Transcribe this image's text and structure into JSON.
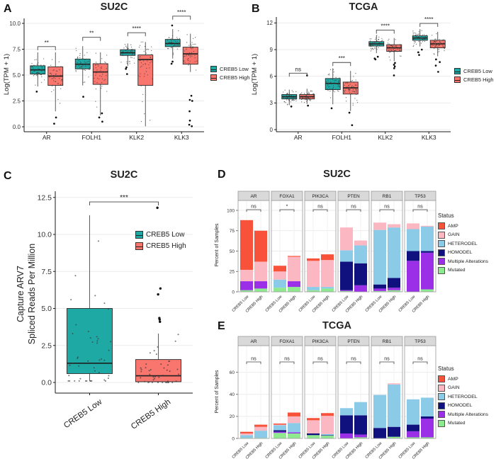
{
  "figure": {
    "panels": {
      "A": {
        "letter": "A",
        "title": "SU2C"
      },
      "B": {
        "letter": "B",
        "title": "TCGA"
      },
      "C": {
        "letter": "C",
        "title": "SU2C"
      },
      "D": {
        "letter": "D",
        "title": "SU2C"
      },
      "E": {
        "letter": "E",
        "title": "TCGA"
      }
    },
    "legend_groups": [
      "CREB5 Low",
      "CREB5 High"
    ],
    "status_legend_title": "Status",
    "status_legend_order": [
      "AMP",
      "GAIN",
      "HETERODEL",
      "HOMODEL",
      "Multiple Alterations",
      "Mutated"
    ],
    "colors": {
      "creb5_low": "#1FA9A4",
      "creb5_high": "#F8766D",
      "box_border": "#2B2B2B",
      "median": "#1F1F1F",
      "grid": "#EBEBEB",
      "axis": "#1A1A1A",
      "strip_bg": "#D9D9D9",
      "strip_border": "#999999",
      "panel_border": "#999999",
      "point": "#3B3B3B",
      "sig": "#444444",
      "status": {
        "AMP": "#F8533A",
        "GAIN": "#FBB8C3",
        "HETERODEL": "#8BCBE8",
        "HOMODEL": "#10107E",
        "Multiple Alterations": "#9B2FE8",
        "Mutated": "#8FE98F"
      }
    }
  },
  "chart_data": [
    {
      "id": "A",
      "type": "boxplot",
      "title": "SU2C",
      "ylabel": "Log(TPM + 1)",
      "ytick_labels": [
        "0.0",
        "2.5",
        "5.0",
        "7.5",
        "10.0"
      ],
      "ytick_values": [
        0,
        2.5,
        5,
        7.5,
        10
      ],
      "categories": [
        "AR",
        "FOLH1",
        "KLK2",
        "KLK3"
      ],
      "groups": [
        "CREB5 Low",
        "CREB5 High"
      ],
      "significance": [
        "**",
        "**",
        "****",
        "****"
      ],
      "sig_y": [
        7.75,
        8.65,
        9.1,
        10.7
      ],
      "boxes": [
        {
          "category": "AR",
          "group": "CREB5 Low",
          "lo": 3.9,
          "q1": 5.1,
          "med": 5.5,
          "q3": 5.9,
          "hi": 7.2,
          "outliers": [
            3.4
          ]
        },
        {
          "category": "AR",
          "group": "CREB5 High",
          "lo": 1.5,
          "q1": 4.0,
          "med": 4.9,
          "q3": 5.8,
          "hi": 7.2,
          "outliers": [
            0.9,
            0.3
          ]
        },
        {
          "category": "FOLH1",
          "group": "CREB5 Low",
          "lo": 4.0,
          "q1": 5.6,
          "med": 6.05,
          "q3": 6.55,
          "hi": 7.8,
          "outliers": [
            2.9
          ]
        },
        {
          "category": "FOLH1",
          "group": "CREB5 High",
          "lo": 1.1,
          "q1": 4.1,
          "med": 5.3,
          "q3": 6.1,
          "hi": 7.2,
          "outliers": [
            0.5,
            0.9,
            1.3
          ]
        },
        {
          "category": "KLK2",
          "group": "CREB5 Low",
          "lo": 5.9,
          "q1": 6.9,
          "med": 7.15,
          "q3": 7.45,
          "hi": 8.05,
          "outliers": [
            5.1,
            5.6,
            5.75
          ]
        },
        {
          "category": "KLK2",
          "group": "CREB5 High",
          "lo": 0.05,
          "q1": 4.0,
          "med": 6.5,
          "q3": 6.95,
          "hi": 8.2,
          "outliers": []
        },
        {
          "category": "KLK3",
          "group": "CREB5 Low",
          "lo": 6.6,
          "q1": 7.75,
          "med": 8.05,
          "q3": 8.45,
          "hi": 9.45,
          "outliers": [
            9.8,
            6.1,
            6.3
          ]
        },
        {
          "category": "KLK3",
          "group": "CREB5 High",
          "lo": 5.3,
          "q1": 6.05,
          "med": 7.05,
          "q3": 7.7,
          "hi": 9.0,
          "outliers": [
            3.0,
            2.6,
            2.5,
            1.5,
            0.6,
            0.2,
            0.05
          ]
        }
      ]
    },
    {
      "id": "B",
      "type": "boxplot",
      "title": "TCGA",
      "ylabel": "Log(TPM + 1)",
      "ytick_labels": [
        "0",
        "3",
        "6",
        "9",
        "12"
      ],
      "ytick_values": [
        0,
        3,
        6,
        9,
        12
      ],
      "categories": [
        "AR",
        "FOLH1",
        "KLK2",
        "KLK3"
      ],
      "groups": [
        "CREB5 Low",
        "CREB5 High"
      ],
      "significance": [
        "ns",
        "***",
        "****",
        "****"
      ],
      "sig_y": [
        6.35,
        7.55,
        11.2,
        11.95
      ],
      "boxes": [
        {
          "category": "AR",
          "group": "CREB5 Low",
          "lo": 2.75,
          "q1": 3.45,
          "med": 3.7,
          "q3": 3.95,
          "hi": 4.5,
          "outliers": [
            2.6
          ]
        },
        {
          "category": "AR",
          "group": "CREB5 High",
          "lo": 2.9,
          "q1": 3.45,
          "med": 3.7,
          "q3": 3.95,
          "hi": 4.6,
          "outliers": [
            6.1,
            2.7
          ]
        },
        {
          "category": "FOLH1",
          "group": "CREB5 Low",
          "lo": 2.85,
          "q1": 4.5,
          "med": 5.2,
          "q3": 5.75,
          "hi": 6.9,
          "outliers": [
            2.4
          ]
        },
        {
          "category": "FOLH1",
          "group": "CREB5 High",
          "lo": 2.1,
          "q1": 4.0,
          "med": 4.7,
          "q3": 5.35,
          "hi": 6.6,
          "outliers": [
            1.9,
            0.5
          ]
        },
        {
          "category": "KLK2",
          "group": "CREB5 Low",
          "lo": 8.6,
          "q1": 9.4,
          "med": 9.65,
          "q3": 9.9,
          "hi": 10.6,
          "outliers": [
            8.0,
            8.2,
            7.9
          ]
        },
        {
          "category": "KLK2",
          "group": "CREB5 High",
          "lo": 7.7,
          "q1": 8.8,
          "med": 9.2,
          "q3": 9.55,
          "hi": 10.3,
          "outliers": [
            6.1,
            6.9,
            7.1,
            7.3,
            7.5
          ]
        },
        {
          "category": "KLK3",
          "group": "CREB5 Low",
          "lo": 9.35,
          "q1": 10.05,
          "med": 10.3,
          "q3": 10.55,
          "hi": 11.3,
          "outliers": [
            8.4,
            8.7,
            9.0
          ]
        },
        {
          "category": "KLK3",
          "group": "CREB5 High",
          "lo": 8.25,
          "q1": 9.2,
          "med": 9.65,
          "q3": 10.05,
          "hi": 11.0,
          "outliers": [
            6.5,
            7.2,
            7.6,
            7.9
          ]
        }
      ]
    },
    {
      "id": "C",
      "type": "boxplot",
      "title": "SU2C",
      "ylabel": "Capture ARV7\nSpliced Reads Per Million",
      "ytick_labels": [
        "0.0",
        "2.5",
        "5.0",
        "7.5",
        "10.0",
        "12.5"
      ],
      "ytick_values": [
        0,
        2.5,
        5,
        7.5,
        10,
        12.5
      ],
      "categories": [
        "CREB5 Low",
        "CREB5 High"
      ],
      "groups": [
        "CREB5 Low",
        "CREB5 High"
      ],
      "significance": [
        "***"
      ],
      "sig_y": [
        12.2
      ],
      "boxes": [
        {
          "category": "CREB5 Low",
          "group": "CREB5 Low",
          "lo": 0.1,
          "q1": 0.6,
          "med": 1.3,
          "q3": 5.0,
          "hi": 11.3,
          "outliers": []
        },
        {
          "category": "CREB5 High",
          "group": "CREB5 High",
          "lo": 0.0,
          "q1": 0.05,
          "med": 0.45,
          "q3": 1.55,
          "hi": 3.3,
          "outliers": [
            4.1,
            4.25,
            4.35,
            5.95,
            6.35,
            11.8
          ]
        }
      ]
    },
    {
      "id": "D",
      "type": "stacked_bar",
      "title": "SU2C",
      "ylabel": "Percent of Samples",
      "ytick_values": [
        0,
        25,
        50,
        75,
        100
      ],
      "facets": [
        "AR",
        "FOXA1",
        "PIK3CA",
        "PTEN",
        "RB1",
        "TP53"
      ],
      "groups": [
        "CREB5 Low",
        "CREB5 High"
      ],
      "significance": [
        "ns",
        "*",
        "ns",
        "ns",
        "ns",
        "ns"
      ],
      "stack_order": [
        "Mutated",
        "Multiple Alterations",
        "HOMODEL",
        "HETERODEL",
        "GAIN",
        "AMP"
      ],
      "values": {
        "AR": {
          "CREB5 Low": {
            "Mutated": 2,
            "Multiple Alterations": 11,
            "HOMODEL": 0,
            "HETERODEL": 0,
            "GAIN": 14,
            "AMP": 61
          },
          "CREB5 High": {
            "Mutated": 4,
            "Multiple Alterations": 9,
            "HOMODEL": 0,
            "HETERODEL": 0,
            "GAIN": 24,
            "AMP": 38
          }
        },
        "FOXA1": {
          "CREB5 Low": {
            "Mutated": 5,
            "Multiple Alterations": 0,
            "HOMODEL": 0,
            "HETERODEL": 10,
            "GAIN": 10,
            "AMP": 7
          },
          "CREB5 High": {
            "Mutated": 6,
            "Multiple Alterations": 7,
            "HOMODEL": 0,
            "HETERODEL": 0,
            "GAIN": 30,
            "AMP": 1
          }
        },
        "PIK3CA": {
          "CREB5 Low": {
            "Mutated": 2,
            "Multiple Alterations": 0,
            "HOMODEL": 0,
            "HETERODEL": 4,
            "GAIN": 32,
            "AMP": 3
          },
          "CREB5 High": {
            "Mutated": 4,
            "Multiple Alterations": 0,
            "HOMODEL": 0,
            "HETERODEL": 2,
            "GAIN": 33,
            "AMP": 7
          }
        },
        "PTEN": {
          "CREB5 Low": {
            "Mutated": 1,
            "Multiple Alterations": 1,
            "HOMODEL": 35,
            "HETERODEL": 14,
            "GAIN": 28,
            "AMP": 0
          },
          "CREB5 High": {
            "Mutated": 0,
            "Multiple Alterations": 8,
            "HOMODEL": 27,
            "HETERODEL": 22,
            "GAIN": 6,
            "AMP": 0
          }
        },
        "RB1": {
          "CREB5 Low": {
            "Mutated": 1,
            "Multiple Alterations": 3,
            "HOMODEL": 5,
            "HETERODEL": 67,
            "GAIN": 9,
            "AMP": 0
          },
          "CREB5 High": {
            "Mutated": 2,
            "Multiple Alterations": 3,
            "HOMODEL": 12,
            "HETERODEL": 62,
            "GAIN": 4,
            "AMP": 0
          }
        },
        "TP53": {
          "CREB5 Low": {
            "Mutated": 0,
            "Multiple Alterations": 38,
            "HOMODEL": 12,
            "HETERODEL": 27,
            "GAIN": 7,
            "AMP": 0
          },
          "CREB5 High": {
            "Mutated": 3,
            "Multiple Alterations": 45,
            "HOMODEL": 2,
            "HETERODEL": 30,
            "GAIN": 1,
            "AMP": 0
          }
        }
      }
    },
    {
      "id": "E",
      "type": "stacked_bar",
      "title": "TCGA",
      "ylabel": "Percent of Samples",
      "ytick_values": [
        0,
        20,
        40,
        60
      ],
      "facets": [
        "AR",
        "FOXA1",
        "PIK3CA",
        "PTEN",
        "RB1",
        "TP53"
      ],
      "groups": [
        "CREB5 Low",
        "CREB5 High"
      ],
      "significance": [
        "ns",
        "ns",
        "ns",
        "ns",
        "ns",
        "ns"
      ],
      "stack_order": [
        "Mutated",
        "Multiple Alterations",
        "HOMODEL",
        "HETERODEL",
        "GAIN",
        "AMP"
      ],
      "values": {
        "AR": {
          "CREB5 Low": {
            "Mutated": 0.5,
            "Multiple Alterations": 0,
            "HOMODEL": 0,
            "HETERODEL": 2.5,
            "GAIN": 1.5,
            "AMP": 1.5
          },
          "CREB5 High": {
            "Mutated": 0.5,
            "Multiple Alterations": 0,
            "HOMODEL": 0,
            "HETERODEL": 6.5,
            "GAIN": 3.5,
            "AMP": 2
          }
        },
        "FOXA1": {
          "CREB5 Low": {
            "Mutated": 5,
            "Multiple Alterations": 1,
            "HOMODEL": 1.5,
            "HETERODEL": 4.5,
            "GAIN": 0.5,
            "AMP": 1
          },
          "CREB5 High": {
            "Mutated": 4.5,
            "Multiple Alterations": 1,
            "HOMODEL": 0,
            "HETERODEL": 8.5,
            "GAIN": 6,
            "AMP": 3.5
          }
        },
        "PIK3CA": {
          "CREB5 Low": {
            "Mutated": 3,
            "Multiple Alterations": 0,
            "HOMODEL": 1.5,
            "HETERODEL": 0,
            "GAIN": 12,
            "AMP": 2
          },
          "CREB5 High": {
            "Mutated": 2.5,
            "Multiple Alterations": 0,
            "HOMODEL": 0.5,
            "HETERODEL": 1,
            "GAIN": 16.5,
            "AMP": 2.5
          }
        },
        "PTEN": {
          "CREB5 Low": {
            "Mutated": 0,
            "Multiple Alterations": 4.5,
            "HOMODEL": 16.5,
            "HETERODEL": 6.5,
            "GAIN": 0,
            "AMP": 0
          },
          "CREB5 High": {
            "Mutated": 1,
            "Multiple Alterations": 2.5,
            "HOMODEL": 17.5,
            "HETERODEL": 12,
            "GAIN": 0,
            "AMP": 0
          }
        },
        "RB1": {
          "CREB5 Low": {
            "Mutated": 0,
            "Multiple Alterations": 0,
            "HOMODEL": 9.5,
            "HETERODEL": 30,
            "GAIN": 0,
            "AMP": 0
          },
          "CREB5 High": {
            "Mutated": 1.5,
            "Multiple Alterations": 0,
            "HOMODEL": 9,
            "HETERODEL": 38.5,
            "GAIN": 1,
            "AMP": 0
          }
        },
        "TP53": {
          "CREB5 Low": {
            "Mutated": 1,
            "Multiple Alterations": 5.5,
            "HOMODEL": 6,
            "HETERODEL": 23,
            "GAIN": 0,
            "AMP": 0
          },
          "CREB5 High": {
            "Mutated": 1,
            "Multiple Alterations": 17,
            "HOMODEL": 2,
            "HETERODEL": 17,
            "GAIN": 0,
            "AMP": 0
          }
        }
      }
    }
  ]
}
